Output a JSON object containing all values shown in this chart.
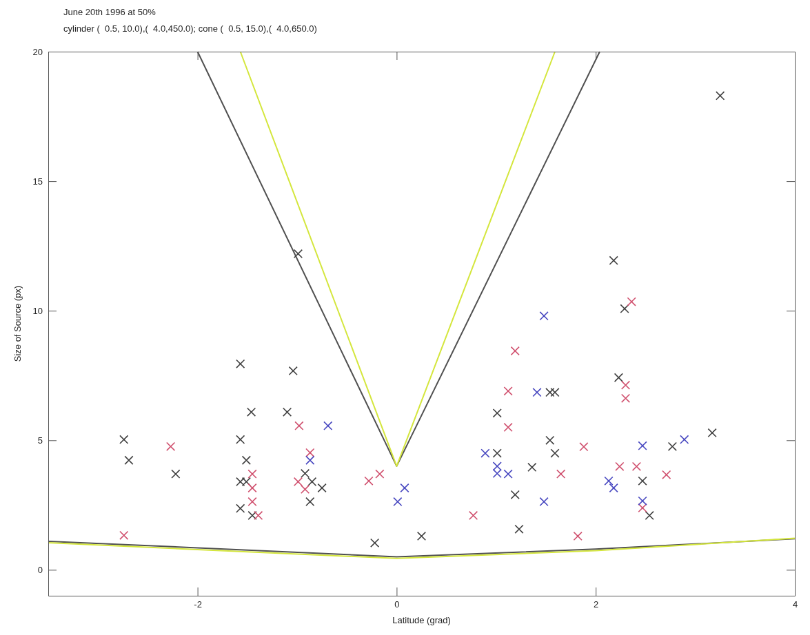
{
  "chart_data": {
    "type": "scatter",
    "title": "June 20th 1996 at 50%",
    "subtitle": "cylinder (  0.5, 10.0),(  4.0,450.0); cone (  0.5, 15.0),(  4.0,650.0)",
    "xlabel": "Latitude (grad)",
    "ylabel": "Size of Source (px)",
    "xlim": [
      -3.5,
      4
    ],
    "ylim": [
      -1,
      20
    ],
    "xticks": [
      -2,
      0,
      2,
      4
    ],
    "yticks": [
      0,
      5,
      10,
      15,
      20
    ],
    "grid": false,
    "series": [
      {
        "type": "line",
        "color": "#505050",
        "x": [
          -2,
          0,
          2.04
        ],
        "values": [
          20,
          4,
          20
        ]
      },
      {
        "type": "line",
        "color": "#d4e63c",
        "x": [
          -1.57,
          0,
          1.59
        ],
        "values": [
          20,
          4,
          20
        ]
      },
      {
        "type": "line",
        "color": "#505050",
        "x": [
          -3.5,
          -2,
          0,
          2,
          4
        ],
        "values": [
          1.1,
          0.85,
          0.5,
          0.8,
          1.2
        ]
      },
      {
        "type": "line",
        "color": "#d4e63c",
        "x": [
          -3.5,
          -2,
          0,
          2,
          4
        ],
        "values": [
          1.05,
          0.78,
          0.44,
          0.74,
          1.22
        ]
      },
      {
        "marker": "cross",
        "color": "#404040",
        "x": [
          -2.74,
          -2.69,
          -2.22,
          -0.99,
          -1.57,
          -1.04,
          -1.46,
          -1.1,
          -1.57,
          -1.51,
          -1.57,
          -1.51,
          -1.57,
          -1.45,
          -0.92,
          -0.85,
          -0.75,
          -0.87,
          -0.22,
          0.25,
          1.01,
          1.54,
          1.59,
          1.54,
          1.01,
          1.59,
          1.36,
          1.19,
          1.23,
          2.18,
          2.29,
          2.23,
          3.17,
          2.77,
          2.47,
          2.54,
          3.25
        ],
        "values": [
          5.03,
          4.23,
          3.7,
          12.2,
          7.95,
          7.68,
          6.09,
          6.09,
          5.03,
          4.23,
          3.4,
          3.4,
          2.37,
          2.1,
          3.72,
          3.4,
          3.16,
          2.63,
          1.04,
          1.3,
          6.05,
          6.85,
          6.85,
          5.0,
          4.5,
          4.5,
          3.96,
          2.9,
          1.57,
          11.94,
          10.08,
          7.42,
          5.29,
          4.76,
          3.43,
          2.1,
          18.3
        ]
      },
      {
        "marker": "cross",
        "color": "#d0506e",
        "x": [
          -2.74,
          -2.27,
          -0.98,
          -0.87,
          -1.45,
          -1.45,
          -1.45,
          -1.39,
          -0.99,
          -0.92,
          -0.28,
          -0.17,
          0.77,
          1.19,
          1.12,
          1.12,
          1.88,
          1.65,
          1.82,
          2.36,
          2.3,
          2.3,
          2.24,
          2.41,
          2.71,
          2.47
        ],
        "values": [
          1.33,
          4.76,
          5.56,
          4.52,
          3.7,
          3.16,
          2.63,
          2.1,
          3.4,
          3.11,
          3.43,
          3.7,
          2.1,
          8.45,
          6.9,
          5.5,
          4.75,
          3.7,
          1.3,
          10.35,
          7.13,
          6.62,
          3.99,
          3.99,
          3.67,
          2.39
        ]
      },
      {
        "marker": "cross",
        "color": "#4848c0",
        "x": [
          -0.69,
          -0.87,
          0.08,
          0.01,
          1.48,
          1.41,
          0.89,
          1.01,
          1.01,
          1.12,
          1.48,
          2.89,
          2.47,
          2.13,
          2.18,
          2.47
        ],
        "values": [
          5.56,
          4.23,
          3.16,
          2.63,
          9.8,
          6.85,
          4.5,
          4.0,
          3.72,
          3.7,
          2.63,
          5.03,
          4.79,
          3.43,
          3.16,
          2.66
        ]
      }
    ]
  }
}
